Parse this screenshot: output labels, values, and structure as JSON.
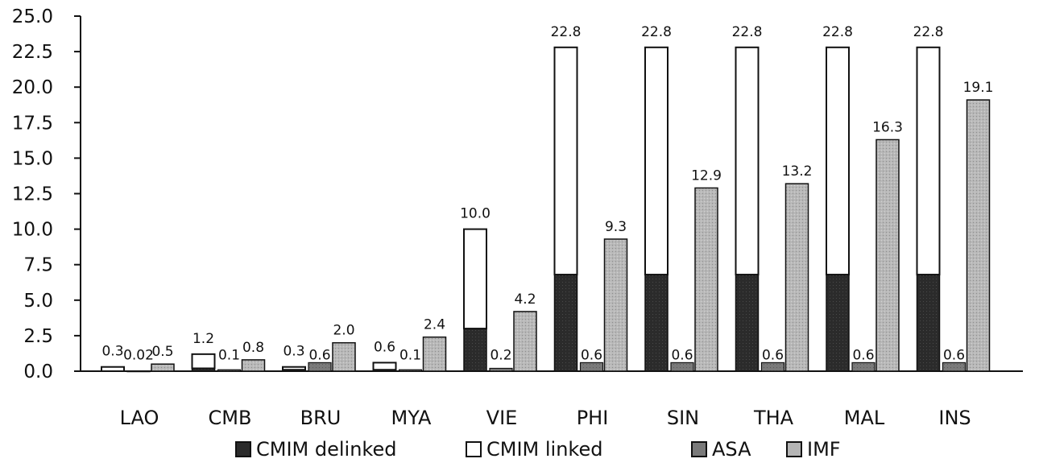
{
  "chart_data": {
    "type": "bar",
    "title": "",
    "xlabel": "",
    "ylabel": "",
    "ylim": [
      0,
      25
    ],
    "yticks": [
      "0.0",
      "2.5",
      "5.0",
      "7.5",
      "10.0",
      "12.5",
      "15.0",
      "17.5",
      "20.0",
      "22.5",
      "25.0"
    ],
    "grid": false,
    "legend_position": "bottom",
    "categories": [
      "LAO",
      "CMB",
      "BRU",
      "MYA",
      "VIE",
      "PHI",
      "SIN",
      "THA",
      "MAL",
      "INS"
    ],
    "series": [
      {
        "name": "CMIM delinked",
        "color": "#2b2b2b",
        "values": [
          0.0,
          0.2,
          0.1,
          0.1,
          3.0,
          6.8,
          6.8,
          6.8,
          6.8,
          6.8
        ]
      },
      {
        "name": "CMIM linked",
        "color": "#ffffff",
        "values": [
          0.3,
          1.0,
          0.2,
          0.5,
          7.0,
          16.0,
          16.0,
          16.0,
          16.0,
          16.0
        ]
      },
      {
        "name": "ASA",
        "color": "#7a7a7a",
        "values": [
          0.02,
          0.1,
          0.6,
          0.1,
          0.2,
          0.6,
          0.6,
          0.6,
          0.6,
          0.6
        ]
      },
      {
        "name": "IMF",
        "color": "#b5b5b5",
        "values": [
          0.5,
          0.8,
          2.0,
          2.4,
          4.2,
          9.3,
          12.9,
          13.2,
          16.3,
          19.1
        ]
      }
    ],
    "stack_totals": [
      0.3,
      1.2,
      0.3,
      0.6,
      10.0,
      22.8,
      22.8,
      22.8,
      22.8,
      22.8
    ],
    "stack_total_labels": [
      "0.3",
      "1.2",
      "0.3",
      "0.6",
      "10.0",
      "22.8",
      "22.8",
      "22.8",
      "22.8",
      "22.8"
    ],
    "asa_labels": [
      "0.02",
      "0.1",
      "0.6",
      "0.1",
      "0.2",
      "0.6",
      "0.6",
      "0.6",
      "0.6",
      "0.6"
    ],
    "imf_labels": [
      "0.5",
      "0.8",
      "2.0",
      "2.4",
      "4.2",
      "9.3",
      "12.9",
      "13.2",
      "16.3",
      "19.1"
    ]
  }
}
